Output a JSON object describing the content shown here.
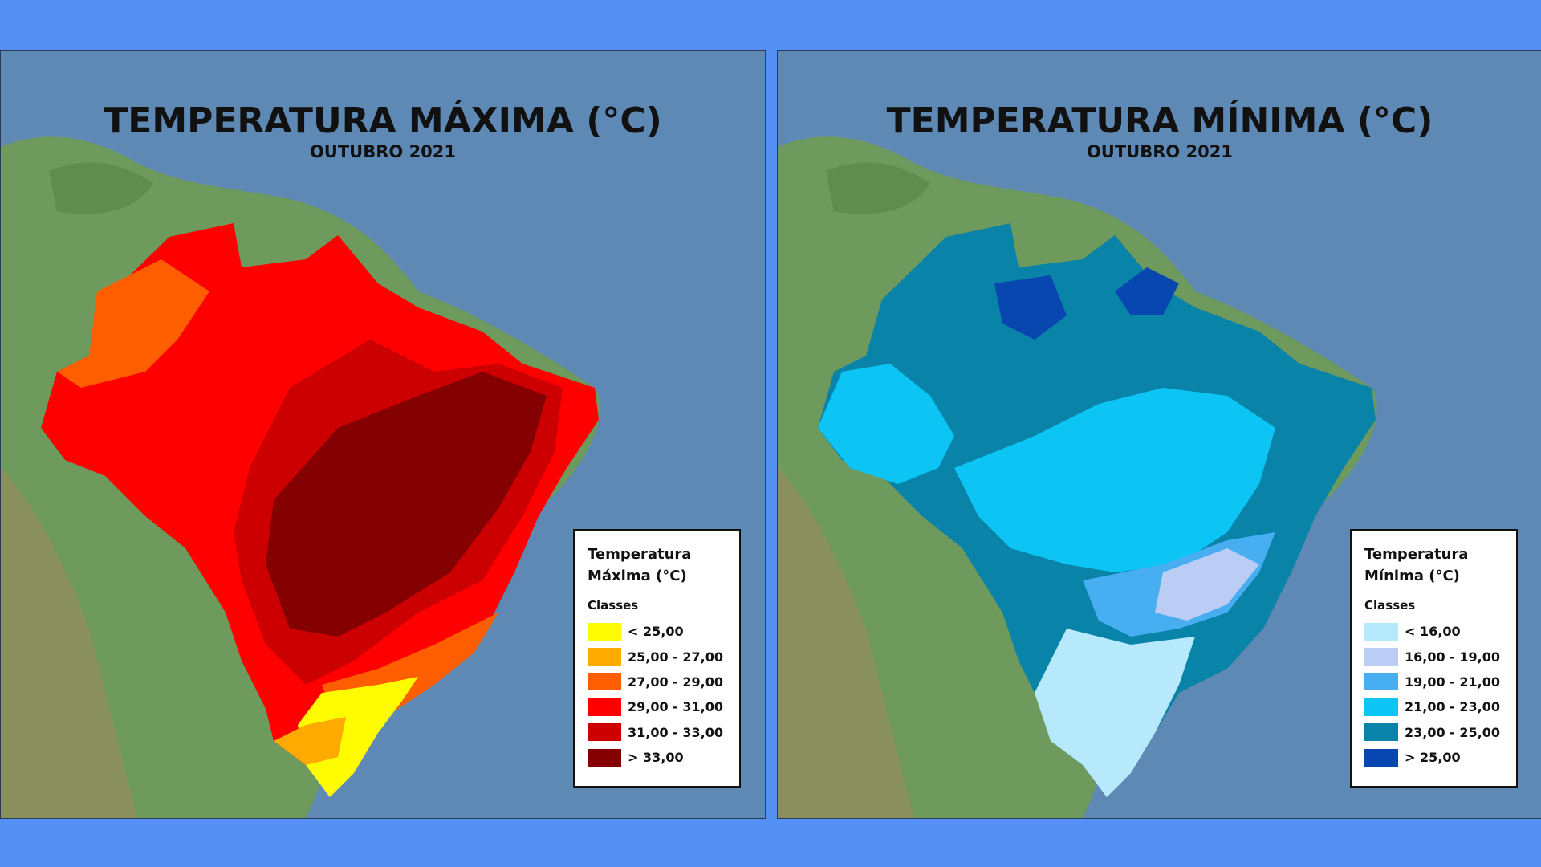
{
  "maps": [
    {
      "title": "TEMPERATURA MÁXIMA (°C)",
      "subtitle": "OUTUBRO 2021",
      "legend": {
        "title_line1": "Temperatura",
        "title_line2": "Máxima (°C)",
        "classes_label": "Classes",
        "items": [
          {
            "label": "< 25,00",
            "color": "#fffb00"
          },
          {
            "label": "25,00 - 27,00",
            "color": "#ffaa00"
          },
          {
            "label": "27,00 - 29,00",
            "color": "#ff5e00"
          },
          {
            "label": "29,00 - 31,00",
            "color": "#ff0000"
          },
          {
            "label": "31,00 - 33,00",
            "color": "#cc0000"
          },
          {
            "label": "> 33,00",
            "color": "#850000"
          }
        ]
      }
    },
    {
      "title": "TEMPERATURA MÍNIMA (°C)",
      "subtitle": "OUTUBRO 2021",
      "legend": {
        "title_line1": "Temperatura",
        "title_line2": "Mínima (°C)",
        "classes_label": "Classes",
        "items": [
          {
            "label": "< 16,00",
            "color": "#b6e9fb"
          },
          {
            "label": "16,00 - 19,00",
            "color": "#bccdf5"
          },
          {
            "label": "19,00 - 21,00",
            "color": "#48aef2"
          },
          {
            "label": "21,00 - 23,00",
            "color": "#0cc5f5"
          },
          {
            "label": "23,00 - 25,00",
            "color": "#0a83a8"
          },
          {
            "label": "> 25,00",
            "color": "#0846b0"
          }
        ]
      }
    }
  ],
  "colors": {
    "page_background": "#5591f5",
    "ocean": "#5e89b4",
    "land": "#6f9a5e"
  }
}
